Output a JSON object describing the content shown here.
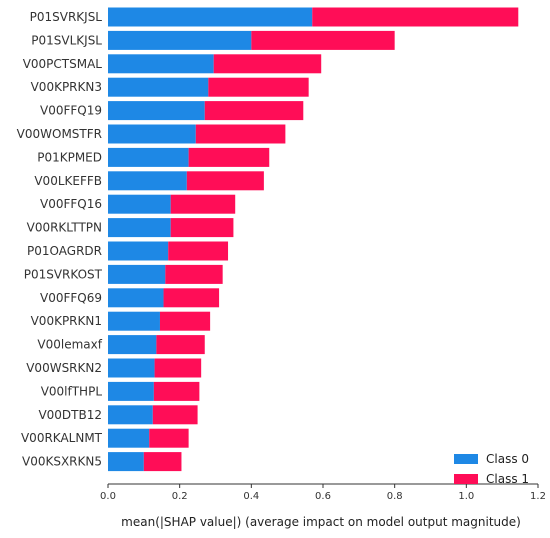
{
  "chart_data": {
    "type": "bar",
    "orientation": "horizontal",
    "stacked": true,
    "categories": [
      "P01SVRKJSL",
      "P01SVLKJSL",
      "V00PCTSMAL",
      "V00KPRKN3",
      "V00FFQ19",
      "V00WOMSTFR",
      "P01KPMED",
      "V00LKEFFB",
      "V00FFQ16",
      "V00RKLTTPN",
      "P01OAGRDR",
      "P01SVRKOST",
      "V00FFQ69",
      "V00KPRKN1",
      "V00lemaxf",
      "V00WSRKN2",
      "V00lfTHPL",
      "V00DTB12",
      "V00RKALNMT",
      "V00KSXRKN5"
    ],
    "series": [
      {
        "name": "Class 0",
        "color": "#1e88e5",
        "values": [
          0.57,
          0.4,
          0.295,
          0.28,
          0.27,
          0.245,
          0.225,
          0.22,
          0.175,
          0.175,
          0.168,
          0.16,
          0.155,
          0.145,
          0.135,
          0.13,
          0.128,
          0.125,
          0.115,
          0.1
        ]
      },
      {
        "name": "Class 1",
        "color": "#ff0d57",
        "values": [
          0.575,
          0.4,
          0.3,
          0.28,
          0.275,
          0.25,
          0.225,
          0.215,
          0.18,
          0.175,
          0.167,
          0.16,
          0.155,
          0.14,
          0.135,
          0.13,
          0.127,
          0.125,
          0.11,
          0.105
        ]
      }
    ],
    "xlabel": "mean(|SHAP value|) (average impact on model output magnitude)",
    "ylabel": "",
    "xlim": [
      0.0,
      1.2
    ],
    "xticks": [
      "0.0",
      "0.2",
      "0.4",
      "0.6",
      "0.8",
      "1.0",
      "1.2"
    ],
    "grid": false,
    "legend_position": "bottom-right"
  }
}
